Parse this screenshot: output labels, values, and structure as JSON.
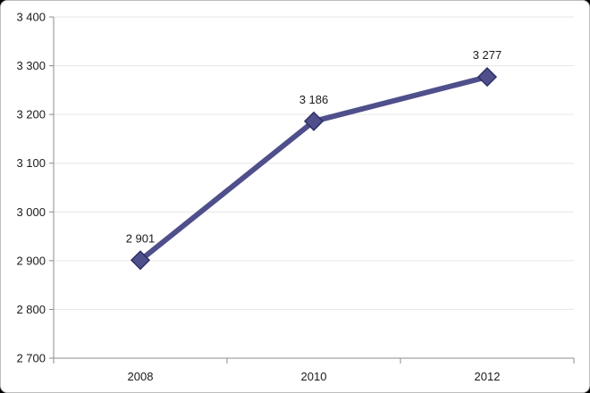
{
  "chart_data": {
    "type": "line",
    "title": "",
    "xlabel": "",
    "ylabel": "",
    "categories": [
      "2008",
      "2010",
      "2012"
    ],
    "series": [
      {
        "values": [
          2901,
          3186,
          3277
        ],
        "data_labels": [
          "2 901",
          "3 186",
          "3 277"
        ]
      }
    ],
    "ylim": [
      2700,
      3400
    ],
    "y_ticks": [
      2700,
      2800,
      2900,
      3000,
      3100,
      3200,
      3300,
      3400
    ],
    "y_tick_labels": [
      "2 700",
      "2 800",
      "2 900",
      "3 000",
      "3 100",
      "3 200",
      "3 300",
      "3 400"
    ],
    "grid": true,
    "legend": "none",
    "marker": "diamond",
    "colors": {
      "series": "#4f4f8c",
      "series_outline": "#2f2f66",
      "grid": "#e6e6e6",
      "axis": "#8c8c8c"
    }
  }
}
